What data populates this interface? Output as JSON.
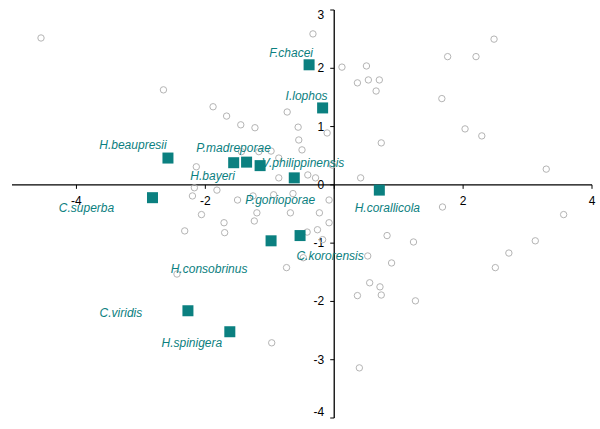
{
  "chart_data": {
    "type": "scatter",
    "xlim": [
      -5,
      4
    ],
    "ylim": [
      -4,
      3
    ],
    "xticks": [
      -4,
      -2,
      0,
      2,
      4
    ],
    "yticks": [
      -4,
      -3,
      -2,
      -1,
      0,
      1,
      2,
      3
    ],
    "grid": false,
    "series": [
      {
        "color": "#b4b4b4",
        "marker": "circle",
        "x": [
          -4.55,
          -2.65,
          -1.88,
          -1.67,
          -1.45,
          -1.23,
          -0.73,
          -0.56,
          -0.33,
          -0.55,
          -0.11,
          0.12,
          0.36,
          0.5,
          0.53,
          0.7,
          0.65,
          0.73,
          1.67,
          1.76,
          2.29,
          2.03,
          2.48,
          2.2,
          3.29,
          3.12,
          2.71,
          2.5,
          1.23,
          0.82,
          0.89,
          0.52,
          0.55,
          0.71,
          0.73,
          0.36,
          0.39,
          1.26,
          1.68,
          -0.08,
          -0.23,
          -0.08,
          -0.29,
          -0.03,
          -0.5,
          -0.41,
          -0.86,
          -0.98,
          -1.17,
          -1.44,
          -1.82,
          -2.14,
          -2.2,
          -2.06,
          -2.32,
          -2.44,
          -1.71,
          -1.7,
          -1.26,
          -1.24,
          -1.2,
          -0.86,
          -0.64,
          -0.94,
          -0.68,
          -0.74,
          -0.48,
          -0.42,
          -0.26,
          -0.18,
          -0.97,
          -2.17,
          -1.5,
          3.56,
          0.41
        ],
        "values": [
          2.52,
          1.63,
          1.34,
          1.18,
          1.03,
          0.98,
          1.25,
          0.99,
          2.59,
          0.77,
          0.89,
          2.02,
          1.75,
          2.04,
          1.8,
          1.8,
          1.61,
          0.72,
          1.48,
          2.2,
          0.84,
          0.96,
          2.5,
          2.2,
          0.27,
          -0.96,
          -1.17,
          -1.42,
          -0.98,
          -0.87,
          -1.34,
          -1.22,
          -1.68,
          -1.75,
          -1.89,
          -1.9,
          -3.14,
          -1.99,
          -0.38,
          -0.65,
          -0.48,
          -0.26,
          0.12,
          0.34,
          0.6,
          0.17,
          0.46,
          0.58,
          0.57,
          0.57,
          -0.09,
          0.31,
          -0.19,
          -0.51,
          -0.79,
          -1.53,
          -0.65,
          -0.82,
          -0.19,
          -0.62,
          -0.48,
          0.12,
          -0.15,
          -0.17,
          -0.48,
          -1.42,
          -1.25,
          -0.81,
          -0.77,
          -0.94,
          -2.71,
          -0.05,
          -0.26,
          -0.51,
          0.12
        ]
      },
      {
        "color": "#0b8080",
        "marker": "square",
        "labels": [
          "F.chacei",
          "I.lophos",
          "H.beaupresii",
          "H.bayeri",
          "P.madreporae",
          "V.philippinensis",
          "P.gonioporae",
          "H.corallicola",
          "C.superba",
          "H.consobrinus",
          "C.kororensis",
          "C.viridis",
          "H.spinigera"
        ],
        "x": [
          -0.39,
          -0.18,
          -2.58,
          -1.56,
          -1.36,
          -1.15,
          -0.62,
          0.7,
          -2.82,
          -0.98,
          -0.53,
          -2.27,
          -1.62
        ],
        "values": [
          2.06,
          1.32,
          0.46,
          0.38,
          0.39,
          0.33,
          0.12,
          -0.09,
          -0.22,
          -0.96,
          -0.87,
          -2.16,
          -2.52
        ]
      }
    ]
  }
}
